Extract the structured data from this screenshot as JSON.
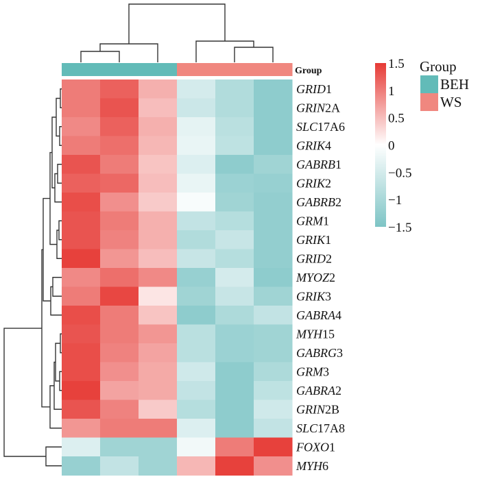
{
  "chart_data": {
    "type": "heatmap",
    "title": "",
    "annotation_label": "Group",
    "groups": [
      {
        "name": "BEH",
        "color": "#62BBB8"
      },
      {
        "name": "WS",
        "color": "#F0877F"
      }
    ],
    "column_groups": [
      "BEH",
      "BEH",
      "BEH",
      "WS",
      "WS",
      "WS"
    ],
    "rows": [
      "GRID1",
      "GRIN2A",
      "SLC17A6",
      "GRIK4",
      "GABRB1",
      "GRIK2",
      "GABRB2",
      "GRM1",
      "GRIK1",
      "GRID2",
      "MYOZ2",
      "GRIK3",
      "GABRA4",
      "MYH15",
      "GABRG3",
      "GRM3",
      "GABRA2",
      "GRIN2B",
      "SLC17A8",
      "FOXO1",
      "MYH6"
    ],
    "row_labels": [
      {
        "italic": "GRID",
        "plain": "1"
      },
      {
        "italic": "GRIN",
        "plain": "2A"
      },
      {
        "italic": "SLC",
        "plain": "17A6"
      },
      {
        "italic": "GRIK",
        "plain": "4"
      },
      {
        "italic": "GABRB",
        "plain": "1"
      },
      {
        "italic": "GRIK",
        "plain": "2"
      },
      {
        "italic": "GABRB",
        "plain": "2"
      },
      {
        "italic": "GRM",
        "plain": "1"
      },
      {
        "italic": "GRIK",
        "plain": "1"
      },
      {
        "italic": "GRID",
        "plain": "2"
      },
      {
        "italic": "MYOZ",
        "plain": "2"
      },
      {
        "italic": "GRIK",
        "plain": "3"
      },
      {
        "italic": "GABRA",
        "plain": "4"
      },
      {
        "italic": "MYH",
        "plain": "15"
      },
      {
        "italic": "GABRG",
        "plain": "3"
      },
      {
        "italic": "GRM",
        "plain": "3"
      },
      {
        "italic": "GABRA",
        "plain": "2"
      },
      {
        "italic": "GRIN",
        "plain": "2B"
      },
      {
        "italic": "SLC",
        "plain": "17A8"
      },
      {
        "italic": "FOXO",
        "plain": "1"
      },
      {
        "italic": "MYH",
        "plain": "6"
      }
    ],
    "values": [
      [
        1.0,
        1.2,
        0.6,
        -0.5,
        -0.9,
        -1.3
      ],
      [
        1.0,
        1.3,
        0.5,
        -0.6,
        -0.9,
        -1.3
      ],
      [
        0.9,
        1.2,
        0.6,
        -0.3,
        -0.8,
        -1.3
      ],
      [
        1.0,
        1.1,
        0.55,
        -0.25,
        -0.75,
        -1.3
      ],
      [
        1.3,
        1.0,
        0.45,
        -0.4,
        -1.3,
        -1.1
      ],
      [
        1.2,
        1.15,
        0.5,
        -0.25,
        -1.15,
        -1.2
      ],
      [
        1.35,
        0.85,
        0.4,
        -0.08,
        -1.1,
        -1.25
      ],
      [
        1.3,
        1.0,
        0.6,
        -0.7,
        -0.85,
        -1.25
      ],
      [
        1.3,
        0.95,
        0.6,
        -0.9,
        -0.65,
        -1.25
      ],
      [
        1.45,
        0.8,
        0.5,
        -0.65,
        -0.85,
        -1.25
      ],
      [
        0.9,
        1.1,
        0.9,
        -1.2,
        -0.5,
        -1.3
      ],
      [
        1.0,
        1.4,
        0.2,
        -1.1,
        -0.65,
        -1.1
      ],
      [
        1.35,
        1.0,
        0.45,
        -1.3,
        -0.95,
        -0.7
      ],
      [
        1.3,
        1.0,
        0.8,
        -0.8,
        -1.15,
        -1.1
      ],
      [
        1.35,
        0.95,
        0.7,
        -0.8,
        -1.15,
        -1.1
      ],
      [
        1.35,
        0.85,
        0.65,
        -0.55,
        -1.3,
        -0.95
      ],
      [
        1.45,
        0.7,
        0.65,
        -0.7,
        -1.3,
        -0.75
      ],
      [
        1.3,
        0.95,
        0.4,
        -0.85,
        -1.3,
        -0.55
      ],
      [
        0.8,
        1.0,
        1.0,
        -0.4,
        -1.3,
        -0.7
      ],
      [
        -0.4,
        -1.1,
        -1.1,
        -0.15,
        1.0,
        1.45
      ],
      [
        -1.2,
        -0.7,
        -1.1,
        0.55,
        1.45,
        0.85
      ]
    ],
    "color_scale": {
      "min": -1.5,
      "max": 1.5,
      "low": "#7DC4C5",
      "mid": "#FFFFFF",
      "high": "#E63A35"
    },
    "colorbar_ticks": [
      "1.5",
      "1",
      "0.5",
      "0",
      "−0.5",
      "−1",
      "−1.5"
    ],
    "colorbar_tick_values": [
      1.5,
      1,
      0.5,
      0,
      -0.5,
      -1,
      -1.5
    ],
    "legend": {
      "title": "Group",
      "placement": "top-right"
    }
  }
}
